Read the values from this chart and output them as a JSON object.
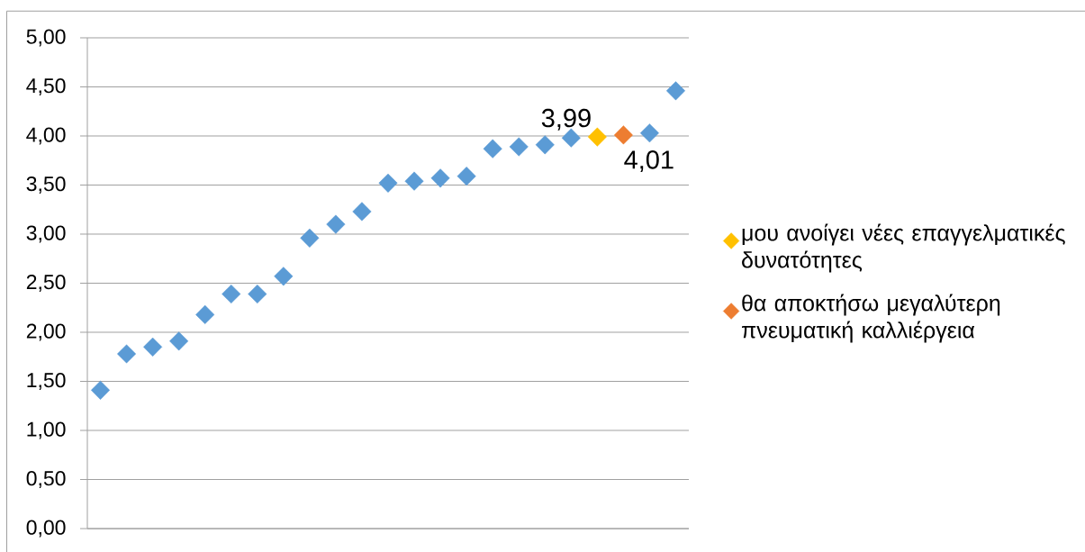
{
  "chart_data": {
    "type": "scatter",
    "categories": [
      null,
      null,
      null,
      null,
      null,
      null,
      null,
      null,
      null,
      null,
      null,
      null,
      null,
      null,
      null,
      null,
      null,
      null,
      null,
      null,
      null,
      null,
      null
    ],
    "series": [
      {
        "color": "#5b9bd5",
        "values": [
          1.41,
          1.78,
          1.85,
          1.91,
          2.18,
          2.39,
          2.39,
          2.57,
          2.96,
          3.1,
          3.23,
          3.52,
          3.54,
          3.57,
          3.59,
          3.87,
          3.89,
          3.91,
          3.98,
          null,
          null,
          4.03,
          4.46
        ]
      },
      {
        "name": "μου ανοίγει νέες επαγγελματικές δυνατότητες",
        "color": "#ffc000",
        "values": [
          null,
          null,
          null,
          null,
          null,
          null,
          null,
          null,
          null,
          null,
          null,
          null,
          null,
          null,
          null,
          null,
          null,
          null,
          null,
          3.99,
          null,
          null,
          null
        ],
        "value_labels": [
          null,
          null,
          null,
          null,
          null,
          null,
          null,
          null,
          null,
          null,
          null,
          null,
          null,
          null,
          null,
          null,
          null,
          null,
          null,
          "3,99",
          null,
          null,
          null
        ]
      },
      {
        "name": "θα αποκτήσω μεγαλύτερη πνευματική καλλιέργεια",
        "color": "#ed7d31",
        "values": [
          null,
          null,
          null,
          null,
          null,
          null,
          null,
          null,
          null,
          null,
          null,
          null,
          null,
          null,
          null,
          null,
          null,
          null,
          null,
          null,
          4.01,
          null,
          null
        ],
        "value_labels": [
          null,
          null,
          null,
          null,
          null,
          null,
          null,
          null,
          null,
          null,
          null,
          null,
          null,
          null,
          null,
          null,
          null,
          null,
          null,
          null,
          "4,01",
          null,
          null
        ]
      }
    ],
    "ylim": [
      0,
      5
    ],
    "yticks": [
      {
        "value": 0,
        "label": "0,00"
      },
      {
        "value": 0.5,
        "label": "0,50"
      },
      {
        "value": 1,
        "label": "1,00"
      },
      {
        "value": 1.5,
        "label": "1,50"
      },
      {
        "value": 2,
        "label": "2,00"
      },
      {
        "value": 2.5,
        "label": "2,50"
      },
      {
        "value": 3,
        "label": "3,00"
      },
      {
        "value": 3.5,
        "label": "3,50"
      },
      {
        "value": 4,
        "label": "4,00"
      },
      {
        "value": 4.5,
        "label": "4,50"
      },
      {
        "value": 5,
        "label": "5,00"
      }
    ],
    "grid": "y",
    "legend": "right",
    "marker": "diamond",
    "tick_labels": "y"
  }
}
